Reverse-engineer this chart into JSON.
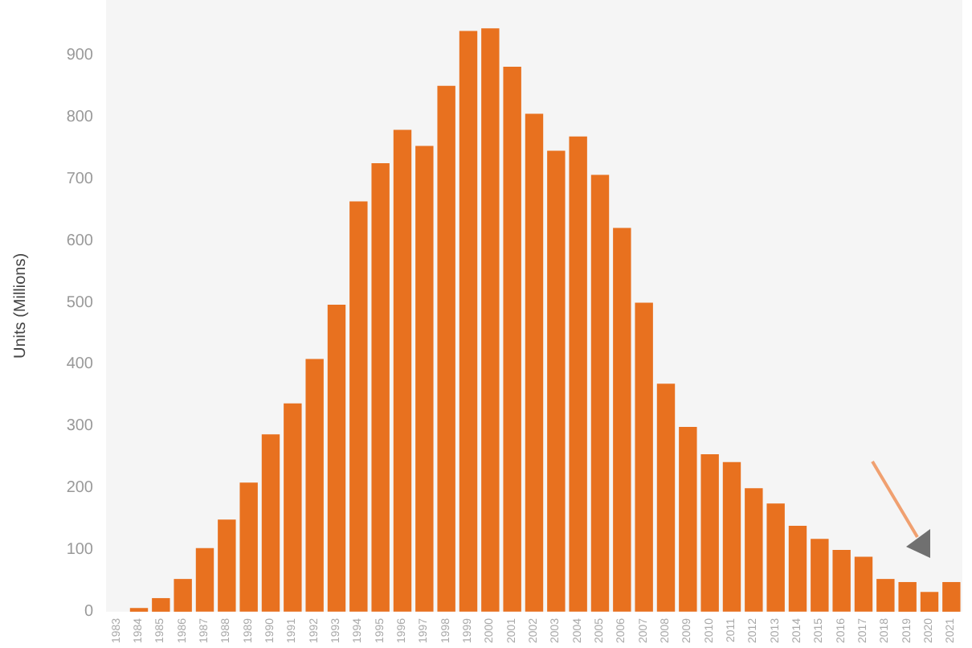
{
  "chart_data": {
    "type": "bar",
    "ylabel": "Units (Millions)",
    "categories": [
      "1983",
      "1984",
      "1985",
      "1986",
      "1987",
      "1988",
      "1989",
      "1990",
      "1991",
      "1992",
      "1993",
      "1994",
      "1995",
      "1996",
      "1997",
      "1998",
      "1999",
      "2000",
      "2001",
      "2002",
      "2003",
      "2004",
      "2005",
      "2006",
      "2007",
      "2008",
      "2009",
      "2010",
      "2011",
      "2012",
      "2013",
      "2014",
      "2015",
      "2016",
      "2017",
      "2018",
      "2019",
      "2020",
      "2021"
    ],
    "values": [
      0,
      6,
      22,
      53,
      103,
      149,
      209,
      287,
      337,
      409,
      497,
      664,
      726,
      780,
      754,
      851,
      940,
      944,
      882,
      806,
      746,
      769,
      707,
      621,
      500,
      369,
      299,
      255,
      242,
      200,
      175,
      139,
      118,
      100,
      89,
      53,
      48,
      32,
      48
    ],
    "color": "#e8711f",
    "ylim": [
      0,
      990
    ],
    "yticks": [
      0,
      100,
      200,
      300,
      400,
      500,
      600,
      700,
      800,
      900
    ],
    "grid": false
  }
}
